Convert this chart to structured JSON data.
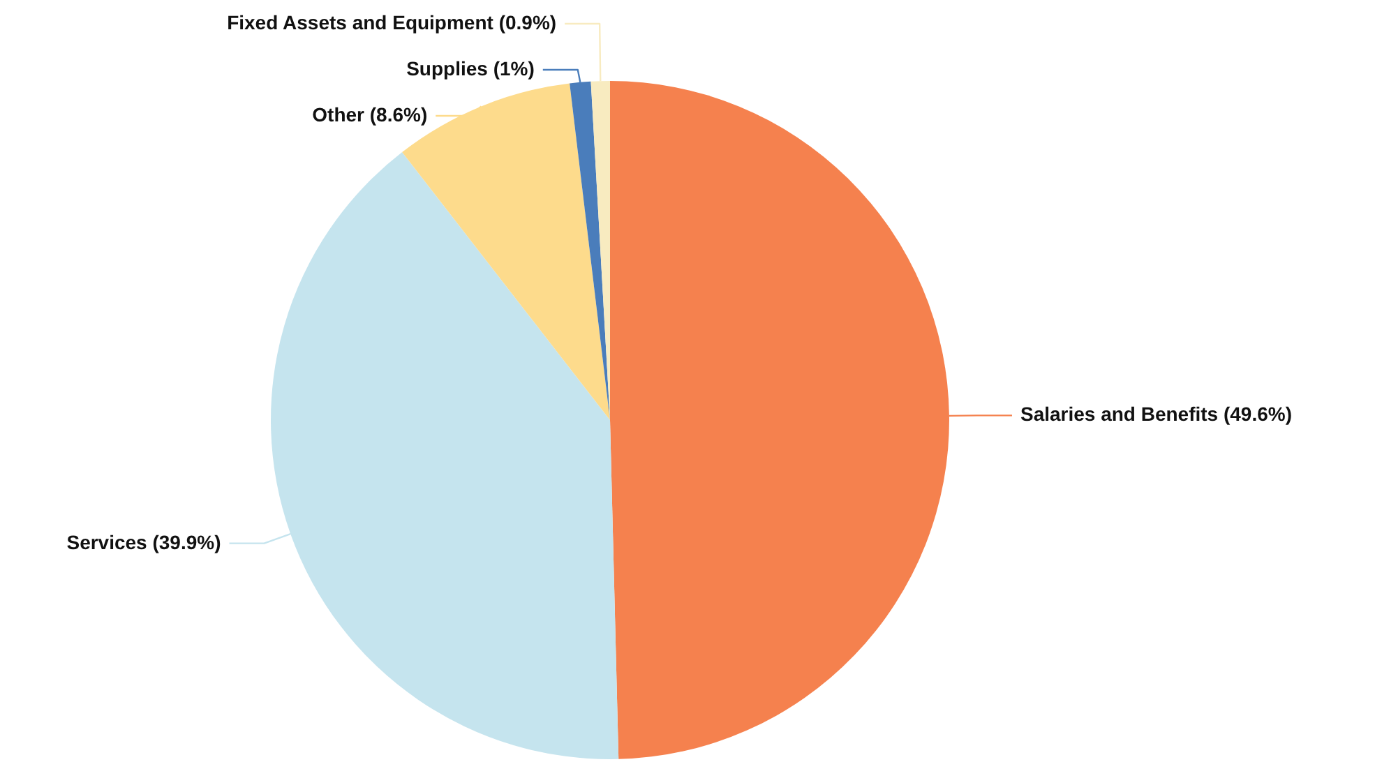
{
  "chart_data": {
    "type": "pie",
    "categories": [
      "Salaries and Benefits",
      "Services",
      "Other",
      "Supplies",
      "Fixed Assets and Equipment"
    ],
    "values": [
      49.6,
      39.9,
      8.6,
      1,
      0.9
    ],
    "value_labels": [
      "(49.6%)",
      "(39.9%)",
      "(8.6%)",
      "(1%)",
      "(0.9%)"
    ],
    "colors": [
      "#f5814e",
      "#c5e4ee",
      "#fddb8c",
      "#4a7dbb",
      "#f8ebc0"
    ]
  }
}
